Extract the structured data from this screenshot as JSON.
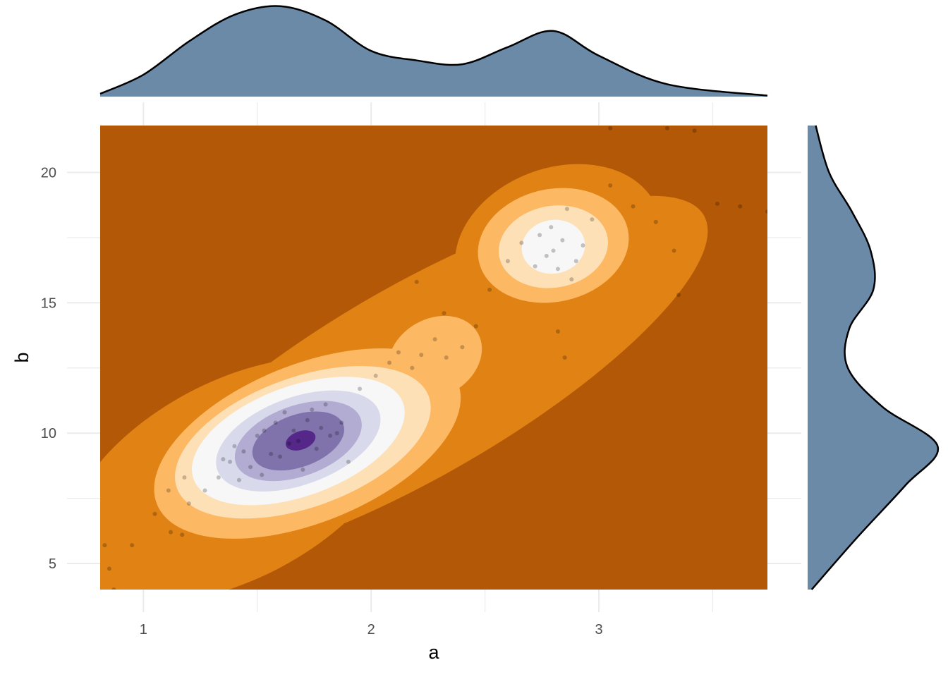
{
  "chart_data": {
    "type": "heatmap",
    "title": "",
    "xlabel": "a",
    "ylabel": "b",
    "xlim": [
      0.81,
      3.74
    ],
    "ylim": [
      4.0,
      21.8
    ],
    "x_ticks": [
      1,
      2,
      3
    ],
    "y_ticks": [
      5,
      10,
      15,
      20
    ],
    "grid": true,
    "legend": "none",
    "colors": {
      "background": "#b35806",
      "levels": [
        "#b35806",
        "#e08214",
        "#fdb863",
        "#fee0b6",
        "#f7f7f7",
        "#d8daeb",
        "#b2abd2",
        "#8073ac",
        "#542788"
      ],
      "marginal_fill": "#6b8aa8",
      "marginal_line": "#000000",
      "points": "#000000",
      "grid": "#ebebeb"
    },
    "density_peaks": [
      {
        "a": 1.68,
        "b": 9.7,
        "level": "highest"
      },
      {
        "a": 2.8,
        "b": 17.1,
        "level": "secondary"
      }
    ],
    "marginal_x": [
      {
        "a": 0.81,
        "density": 0.03
      },
      {
        "a": 1.0,
        "density": 0.23
      },
      {
        "a": 1.2,
        "density": 0.58
      },
      {
        "a": 1.4,
        "density": 0.86
      },
      {
        "a": 1.6,
        "density": 0.95
      },
      {
        "a": 1.8,
        "density": 0.8
      },
      {
        "a": 2.0,
        "density": 0.48
      },
      {
        "a": 2.2,
        "density": 0.38
      },
      {
        "a": 2.4,
        "density": 0.34
      },
      {
        "a": 2.6,
        "density": 0.52
      },
      {
        "a": 2.8,
        "density": 0.69
      },
      {
        "a": 3.0,
        "density": 0.43
      },
      {
        "a": 3.3,
        "density": 0.13
      },
      {
        "a": 3.74,
        "density": 0.01
      }
    ],
    "marginal_y": [
      {
        "b": 4.0,
        "density": 0.03
      },
      {
        "b": 6.0,
        "density": 0.37
      },
      {
        "b": 8.0,
        "density": 0.73
      },
      {
        "b": 9.5,
        "density": 0.97
      },
      {
        "b": 11.0,
        "density": 0.56
      },
      {
        "b": 12.5,
        "density": 0.3
      },
      {
        "b": 14.0,
        "density": 0.31
      },
      {
        "b": 15.5,
        "density": 0.49
      },
      {
        "b": 17.0,
        "density": 0.47
      },
      {
        "b": 18.5,
        "density": 0.33
      },
      {
        "b": 20.0,
        "density": 0.16
      },
      {
        "b": 21.8,
        "density": 0.06
      }
    ],
    "points": [
      [
        0.83,
        5.7
      ],
      [
        0.85,
        4.8
      ],
      [
        0.87,
        4.0
      ],
      [
        0.95,
        5.7
      ],
      [
        1.05,
        6.9
      ],
      [
        1.11,
        7.8
      ],
      [
        1.12,
        6.2
      ],
      [
        1.17,
        6.1
      ],
      [
        1.18,
        8.3
      ],
      [
        1.2,
        7.3
      ],
      [
        1.27,
        7.8
      ],
      [
        1.33,
        8.3
      ],
      [
        1.35,
        9.0
      ],
      [
        1.38,
        8.9
      ],
      [
        1.4,
        9.5
      ],
      [
        1.42,
        8.2
      ],
      [
        1.44,
        9.3
      ],
      [
        1.47,
        8.7
      ],
      [
        1.5,
        9.9
      ],
      [
        1.52,
        8.4
      ],
      [
        1.53,
        10.1
      ],
      [
        1.56,
        9.2
      ],
      [
        1.58,
        10.4
      ],
      [
        1.6,
        9.1
      ],
      [
        1.62,
        10.8
      ],
      [
        1.64,
        9.6
      ],
      [
        1.66,
        10.1
      ],
      [
        1.68,
        9.7
      ],
      [
        1.7,
        8.6
      ],
      [
        1.72,
        10.5
      ],
      [
        1.74,
        10.9
      ],
      [
        1.76,
        9.4
      ],
      [
        1.78,
        10.2
      ],
      [
        1.8,
        11.1
      ],
      [
        1.82,
        9.9
      ],
      [
        1.85,
        10.0
      ],
      [
        1.87,
        10.4
      ],
      [
        1.9,
        8.9
      ],
      [
        1.95,
        11.7
      ],
      [
        2.02,
        12.2
      ],
      [
        2.08,
        12.7
      ],
      [
        2.12,
        13.1
      ],
      [
        2.18,
        12.5
      ],
      [
        2.22,
        13.0
      ],
      [
        2.28,
        13.6
      ],
      [
        2.33,
        12.9
      ],
      [
        2.4,
        13.3
      ],
      [
        2.46,
        14.1
      ],
      [
        2.52,
        15.5
      ],
      [
        2.6,
        16.6
      ],
      [
        2.66,
        17.3
      ],
      [
        2.72,
        16.4
      ],
      [
        2.74,
        17.6
      ],
      [
        2.77,
        16.8
      ],
      [
        2.79,
        17.9
      ],
      [
        2.8,
        17.0
      ],
      [
        2.82,
        16.3
      ],
      [
        2.84,
        17.4
      ],
      [
        2.86,
        18.6
      ],
      [
        2.88,
        15.9
      ],
      [
        2.9,
        16.6
      ],
      [
        2.93,
        17.2
      ],
      [
        2.97,
        18.2
      ],
      [
        3.05,
        19.5
      ],
      [
        3.15,
        18.7
      ],
      [
        3.25,
        18.1
      ],
      [
        3.33,
        17.0
      ],
      [
        3.35,
        15.3
      ],
      [
        3.52,
        18.8
      ],
      [
        3.62,
        18.7
      ],
      [
        3.74,
        18.5
      ],
      [
        3.05,
        21.7
      ],
      [
        3.3,
        21.7
      ],
      [
        3.42,
        21.6
      ],
      [
        2.82,
        13.9
      ],
      [
        2.85,
        12.9
      ],
      [
        2.2,
        15.8
      ],
      [
        2.32,
        14.6
      ]
    ]
  }
}
